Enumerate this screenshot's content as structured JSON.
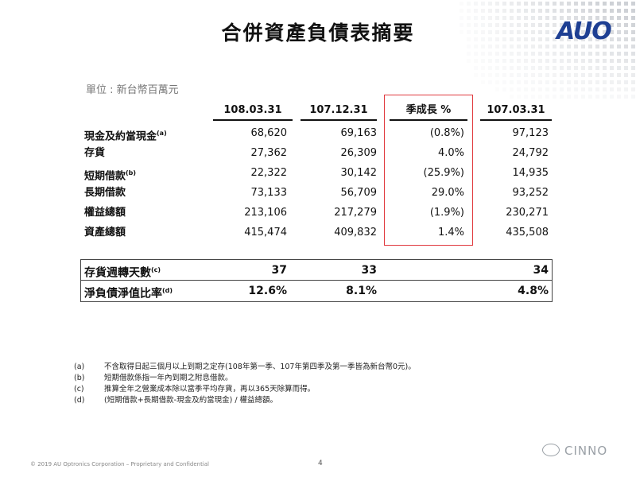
{
  "slide": {
    "title": "合併資產負債表摘要",
    "logo_text": "AUO",
    "unit": "單位 : 新台幣百萬元",
    "footer": "© 2019 AU Optronics Corporation – Proprietary and Confidential",
    "page_number": "4",
    "watermark": "CINNO"
  },
  "table": {
    "headers": [
      "108.03.31",
      "107.12.31",
      "季成長 %",
      "107.03.31"
    ],
    "rows": [
      {
        "label": "現金及約當現金",
        "note": "(a)",
        "values": [
          "68,620",
          "69,163",
          "(0.8%)",
          "97,123"
        ]
      },
      {
        "label": "存貨",
        "note": "",
        "values": [
          "27,362",
          "26,309",
          "4.0%",
          "24,792"
        ]
      },
      {
        "label": "短期借款",
        "note": "(b)",
        "values": [
          "22,322",
          "30,142",
          "(25.9%)",
          "14,935"
        ]
      },
      {
        "label": "長期借款",
        "note": "",
        "values": [
          "73,133",
          "56,709",
          "29.0%",
          "93,252"
        ]
      },
      {
        "label": "權益總額",
        "note": "",
        "values": [
          "213,106",
          "217,279",
          "(1.9%)",
          "230,271"
        ]
      },
      {
        "label": "資產總額",
        "note": "",
        "values": [
          "415,474",
          "409,832",
          "1.4%",
          "435,508"
        ]
      }
    ]
  },
  "ratios": [
    {
      "label": "存貨週轉天數",
      "note": "(c)",
      "values": [
        "37",
        "33",
        "34"
      ]
    },
    {
      "label": "淨負債淨值比率",
      "note": "(d)",
      "values": [
        "12.6%",
        "8.1%",
        "4.8%"
      ]
    }
  ],
  "notes": [
    {
      "key": "(a)",
      "text": "不含取得日起三個月以上到期之定存(108年第一季、107年第四季及第一季皆為新台幣0元)。"
    },
    {
      "key": "(b)",
      "text": "短期借款係指一年內到期之附息借款。"
    },
    {
      "key": "(c)",
      "text": "推算全年之營業成本除以當季平均存貨，再以365天除算而得。"
    },
    {
      "key": "(d)",
      "text": "(短期借款+長期借款-現金及約當現金) / 權益總額。"
    }
  ],
  "colors": {
    "logo": "#1e3f93",
    "highlight_box": "#e0393e"
  }
}
